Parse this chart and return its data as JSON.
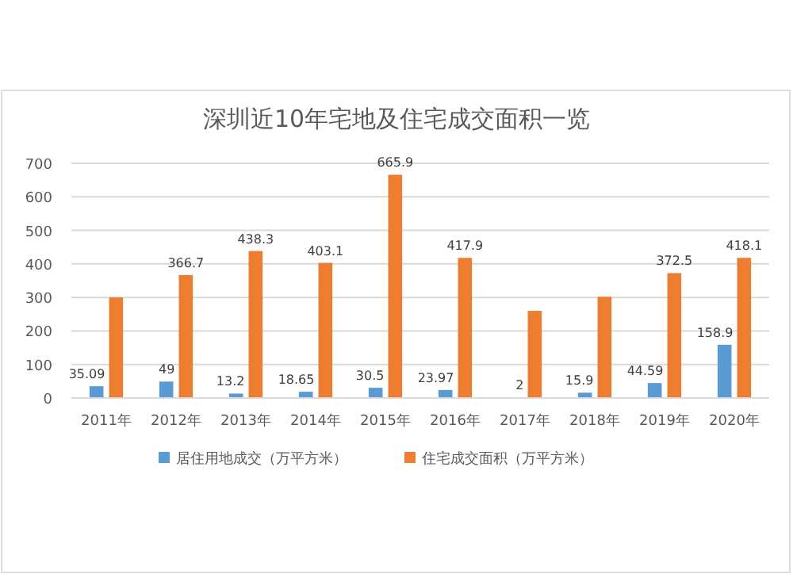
{
  "chart_data": {
    "type": "bar",
    "title": "深圳近10年宅地及住宅成交面积一览",
    "categories": [
      "2011年",
      "2012年",
      "2013年",
      "2014年",
      "2015年",
      "2016年",
      "2017年",
      "2018年",
      "2019年",
      "2020年"
    ],
    "series": [
      {
        "name": "居住用地成交（万平方米）",
        "color": "#5b9bd5",
        "values": [
          35.09,
          49,
          13.2,
          18.65,
          30.5,
          23.97,
          2,
          15.9,
          44.59,
          158.9
        ],
        "value_labels": [
          "35.09",
          "49",
          "13.2",
          "18.65",
          "30.5",
          "23.97",
          "2",
          "15.9",
          "44.59",
          "158.9"
        ]
      },
      {
        "name": "住宅成交面积（万平方米）",
        "color": "#ed7d31",
        "values": [
          300,
          366.7,
          438.3,
          403.1,
          665.9,
          417.9,
          260,
          302,
          372.5,
          418.1
        ],
        "value_labels": [
          null,
          "366.7",
          "438.3",
          "403.1",
          "665.9",
          "417.9",
          null,
          null,
          "372.5",
          "418.1"
        ]
      }
    ],
    "ylim": [
      0,
      700
    ],
    "yticks": [
      0,
      100,
      200,
      300,
      400,
      500,
      600,
      700
    ],
    "grid": "y",
    "legend": "bottom"
  }
}
